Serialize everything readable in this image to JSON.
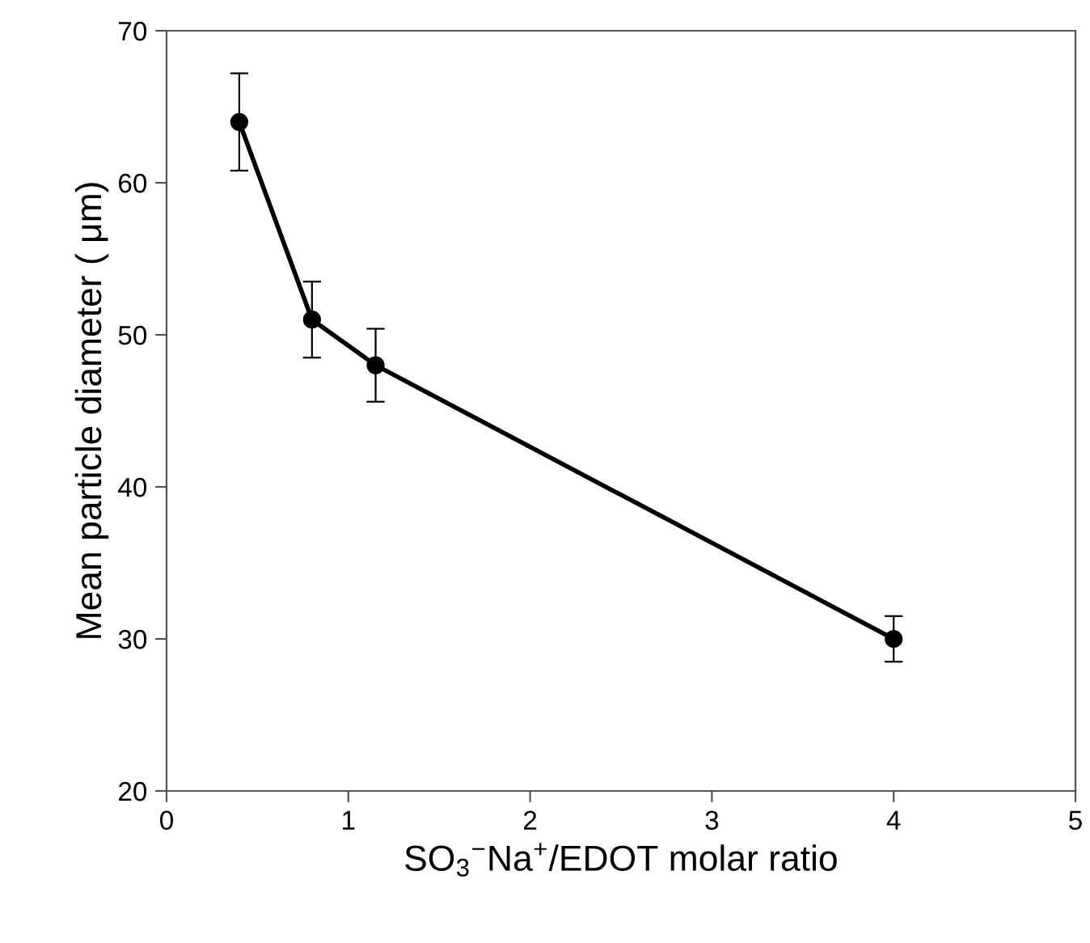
{
  "chart_data": {
    "type": "line",
    "xlabel": "SO$_{3}$$^{−}$Na$^{+}$/EDOT molar ratio",
    "ylabel": "Mean particle diameter ( μm)",
    "x": [
      0.4,
      0.8,
      1.15,
      4.0
    ],
    "series": [
      {
        "color": "#000000",
        "values": [
          64,
          51,
          48,
          30
        ],
        "errors": [
          3.2,
          2.5,
          2.4,
          1.5
        ]
      }
    ],
    "xlim": [
      0,
      5
    ],
    "xticks": [
      0,
      1,
      2,
      3,
      4,
      5
    ],
    "ylim": [
      20,
      70
    ],
    "yticks": [
      20,
      30,
      40,
      50,
      60,
      70
    ],
    "grid": false,
    "legend": false,
    "marker": "circle",
    "line_style": "solid"
  }
}
